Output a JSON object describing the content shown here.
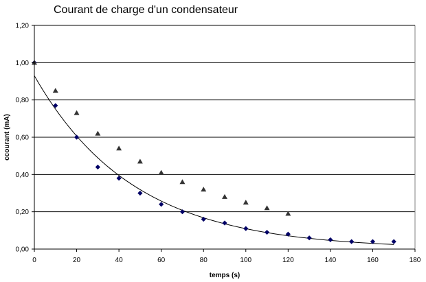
{
  "chart_data": {
    "type": "scatter",
    "title": "Courant de charge d'un condensateur",
    "xlabel": "temps (s)",
    "ylabel": "ccourant (mA)",
    "xlim": [
      0,
      180
    ],
    "ylim": [
      0,
      1.2
    ],
    "x_ticks": [
      0,
      20,
      40,
      60,
      80,
      100,
      120,
      140,
      160,
      180
    ],
    "y_ticks": [
      "0,00",
      "0,20",
      "0,40",
      "0,60",
      "0,80",
      "1,00",
      "1,20"
    ],
    "grid": "horizontal",
    "legend": "none",
    "series": [
      {
        "marker": "diamond",
        "color": "#000066",
        "x": [
          0,
          10,
          20,
          30,
          40,
          50,
          60,
          70,
          80,
          90,
          100,
          110,
          120,
          130,
          140,
          150,
          160,
          170
        ],
        "y": [
          1.0,
          0.77,
          0.6,
          0.44,
          0.38,
          0.3,
          0.24,
          0.2,
          0.16,
          0.14,
          0.11,
          0.09,
          0.08,
          0.06,
          0.05,
          0.04,
          0.04,
          0.04
        ]
      },
      {
        "marker": "triangle",
        "color": "#333333",
        "x": [
          0,
          10,
          20,
          30,
          40,
          50,
          60,
          70,
          80,
          90,
          100,
          110,
          120
        ],
        "y": [
          1.0,
          0.85,
          0.73,
          0.62,
          0.54,
          0.47,
          0.41,
          0.36,
          0.32,
          0.28,
          0.25,
          0.22,
          0.19
        ]
      }
    ],
    "trendline": {
      "type": "exponential",
      "a": 0.93,
      "k": 0.0214,
      "x_range": [
        0,
        170
      ],
      "color": "#000000"
    }
  }
}
